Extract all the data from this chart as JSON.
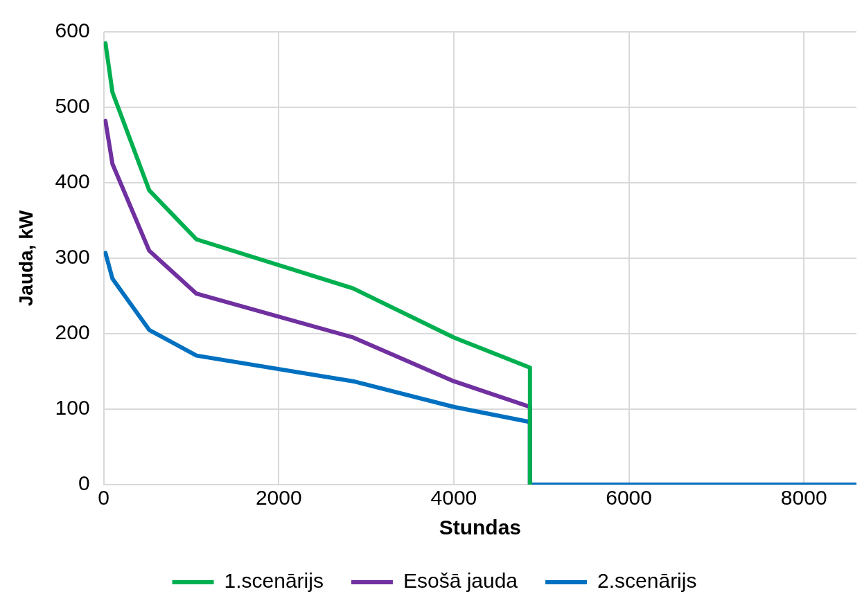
{
  "chart_data": {
    "type": "line",
    "xlabel": "Stundas",
    "ylabel": "Jauda, kW",
    "xlim": [
      0,
      8600
    ],
    "xticks": [
      0,
      2000,
      4000,
      6000,
      8000
    ],
    "ylim": [
      0,
      600
    ],
    "yticks": [
      0,
      100,
      200,
      300,
      400,
      500,
      600
    ],
    "grid": true,
    "legend": "bottom",
    "marker": "none",
    "line_style": "solid",
    "series": [
      {
        "name": "1.scenārijs",
        "color": "#00b050",
        "x": [
          20,
          100,
          520,
          1060,
          2850,
          4000,
          4870,
          4870
        ],
        "values": [
          585,
          520,
          390,
          325,
          260,
          195,
          155,
          0
        ]
      },
      {
        "name": "Esošā jauda",
        "color": "#7030a0",
        "x": [
          20,
          100,
          520,
          1060,
          2850,
          4000,
          4870,
          4870
        ],
        "values": [
          482,
          425,
          310,
          253,
          195,
          137,
          103,
          0
        ]
      },
      {
        "name": "2.scenārijs",
        "color": "#0070c0",
        "x": [
          20,
          100,
          520,
          1060,
          2850,
          4000,
          4870,
          4870,
          8600
        ],
        "values": [
          307,
          273,
          205,
          171,
          137,
          103,
          83,
          0,
          0
        ]
      }
    ]
  }
}
